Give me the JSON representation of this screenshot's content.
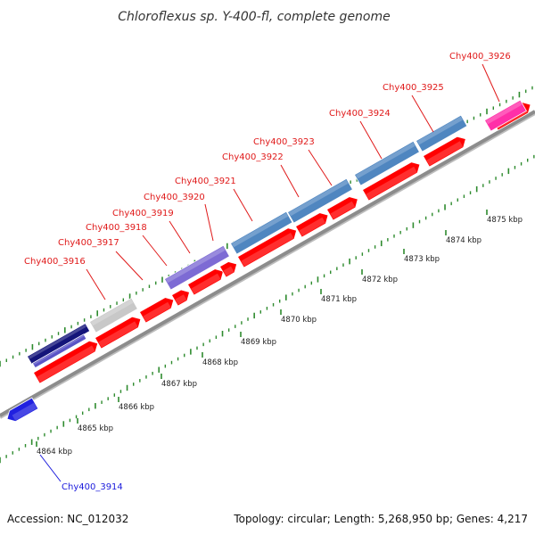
{
  "title": "Chloroflexus sp. Y-400-fl, complete genome",
  "footer": {
    "accession": "Accession: NC_012032",
    "summary": "Topology: circular; Length: 5,268,950 bp; Genes: 4,217"
  },
  "colors": {
    "background": "#ffffff",
    "backbone": "#8c8c8c",
    "tick_major": "#2e8b2e",
    "tick_minor": "#2e8b2e",
    "label_red": "#e01a1a",
    "label_blue": "#1a1adc",
    "gene_red": "#ff0000",
    "gene_blue": "#2020e0",
    "steel": "#4f86c0",
    "lavender": "#7d6bd4",
    "navy": "#14147a",
    "grey": "#c8c8c8",
    "pink": "#ff2fa8"
  },
  "kbp_ticks": [
    "4864 kbp",
    "4865 kbp",
    "4866 kbp",
    "4867 kbp",
    "4868 kbp",
    "4869 kbp",
    "4870 kbp",
    "4871 kbp",
    "4872 kbp",
    "4873 kbp",
    "4874 kbp",
    "4875 kbp"
  ],
  "labels": [
    {
      "text": "Chy400_3914",
      "color": "blue"
    },
    {
      "text": "Chy400_3916",
      "color": "red"
    },
    {
      "text": "Chy400_3917",
      "color": "red"
    },
    {
      "text": "Chy400_3918",
      "color": "red"
    },
    {
      "text": "Chy400_3919",
      "color": "red"
    },
    {
      "text": "Chy400_3920",
      "color": "red"
    },
    {
      "text": "Chy400_3921",
      "color": "red"
    },
    {
      "text": "Chy400_3922",
      "color": "red"
    },
    {
      "text": "Chy400_3923",
      "color": "red"
    },
    {
      "text": "Chy400_3924",
      "color": "red"
    },
    {
      "text": "Chy400_3925",
      "color": "red"
    },
    {
      "text": "Chy400_3926",
      "color": "red"
    }
  ]
}
